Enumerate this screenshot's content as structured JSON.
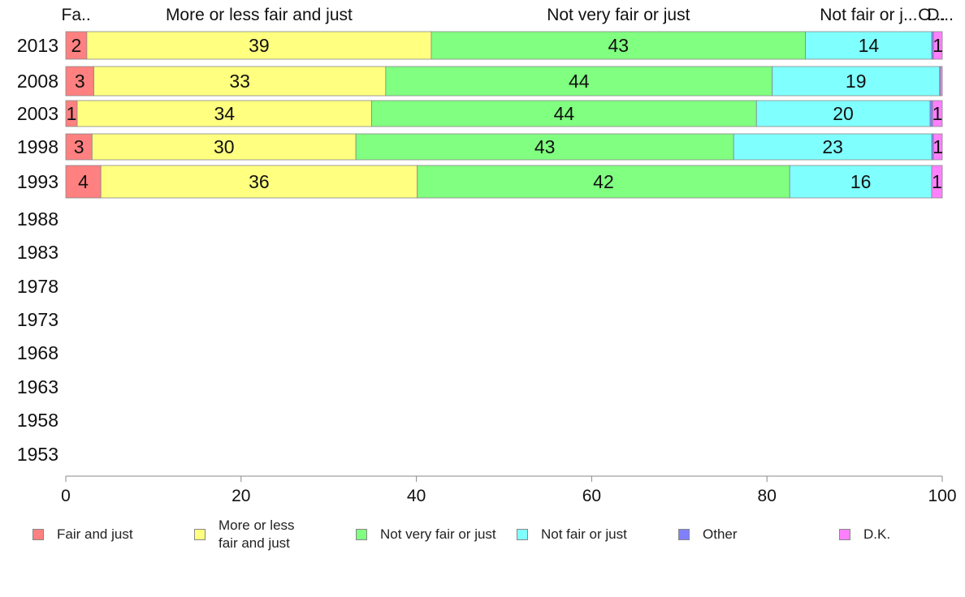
{
  "chart_data": {
    "type": "bar",
    "orientation": "horizontal",
    "stacked": true,
    "categories": [
      "2013",
      "2008",
      "2003",
      "1998",
      "1993",
      "1988",
      "1983",
      "1978",
      "1973",
      "1968",
      "1963",
      "1958",
      "1953"
    ],
    "series": [
      {
        "name": "Fair and just",
        "color": "#FF8080",
        "values": [
          2.4,
          3.2,
          1.3,
          3.0,
          4.0,
          null,
          null,
          null,
          null,
          null,
          null,
          null,
          null
        ],
        "labels": [
          "2",
          "3",
          "1",
          "3",
          "4",
          "",
          "",
          "",
          "",
          "",
          "",
          "",
          ""
        ]
      },
      {
        "name": "More or less fair and just",
        "color": "#FFFF80",
        "values": [
          39.3,
          33.3,
          33.6,
          30.1,
          36.1,
          null,
          null,
          null,
          null,
          null,
          null,
          null,
          null
        ],
        "labels": [
          "39",
          "33",
          "34",
          "30",
          "36",
          "",
          "",
          "",
          "",
          "",
          "",
          "",
          ""
        ]
      },
      {
        "name": "Not very fair or just",
        "color": "#80FF80",
        "values": [
          42.7,
          44.1,
          43.9,
          43.1,
          42.5,
          null,
          null,
          null,
          null,
          null,
          null,
          null,
          null
        ],
        "labels": [
          "43",
          "44",
          "44",
          "43",
          "42",
          "",
          "",
          "",
          "",
          "",
          "",
          "",
          ""
        ]
      },
      {
        "name": "Not fair or just",
        "color": "#80FFFF",
        "values": [
          14.4,
          19.1,
          19.8,
          22.6,
          16.2,
          null,
          null,
          null,
          null,
          null,
          null,
          null,
          null
        ],
        "labels": [
          "14",
          "19",
          "20",
          "23",
          "16",
          "",
          "",
          "",
          "",
          "",
          "",
          "",
          ""
        ]
      },
      {
        "name": "Other",
        "color": "#8080FF",
        "values": [
          0.2,
          0.1,
          0.3,
          0.2,
          0.0,
          null,
          null,
          null,
          null,
          null,
          null,
          null,
          null
        ],
        "labels": [
          "",
          "",
          "",
          "",
          "",
          "",
          "",
          "",
          "",
          "",
          "",
          "",
          ""
        ]
      },
      {
        "name": "D.K.",
        "color": "#FF80FF",
        "values": [
          1.0,
          0.2,
          1.1,
          1.0,
          1.2,
          null,
          null,
          null,
          null,
          null,
          null,
          null,
          null
        ],
        "labels": [
          "1",
          "",
          "1",
          "1",
          "1",
          "",
          "",
          "",
          "",
          "",
          "",
          "",
          ""
        ]
      }
    ],
    "top_labels": [
      "Fa..",
      "More or less fair and just",
      "Not very fair or just",
      "Not fair or j...",
      "O...",
      "D..."
    ],
    "xlim": [
      0,
      100
    ],
    "xticks": [
      "0",
      "20",
      "40",
      "60",
      "80",
      "100"
    ],
    "grid": false,
    "legend_position": "bottom"
  },
  "legend": [
    {
      "label": "Fair and just",
      "color": "#FF8080"
    },
    {
      "label": "More or less\nfair and just",
      "color": "#FFFF80"
    },
    {
      "label": "Not very fair or just",
      "color": "#80FF80"
    },
    {
      "label": "Not fair or just",
      "color": "#80FFFF"
    },
    {
      "label": "Other",
      "color": "#8080FF"
    },
    {
      "label": "D.K.",
      "color": "#FF80FF"
    }
  ]
}
